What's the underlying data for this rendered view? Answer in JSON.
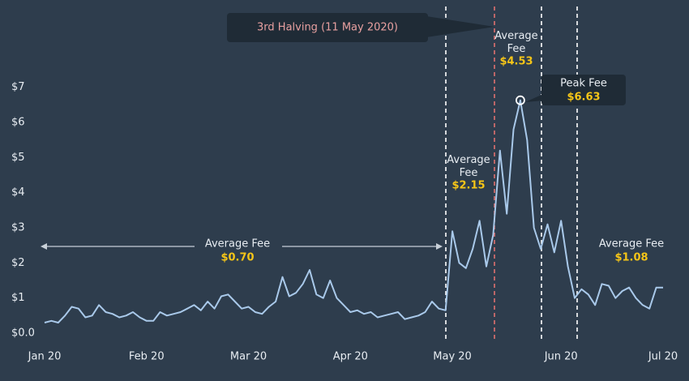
{
  "chart_data": {
    "type": "line",
    "categories": [
      "Jan 20",
      null,
      null,
      null,
      null,
      null,
      null,
      null,
      null,
      null,
      null,
      null,
      null,
      null,
      null,
      "Feb 20",
      null,
      null,
      null,
      null,
      null,
      null,
      null,
      null,
      null,
      null,
      null,
      null,
      null,
      null,
      "Mar 20",
      null,
      null,
      null,
      null,
      null,
      null,
      null,
      null,
      null,
      null,
      null,
      null,
      null,
      null,
      "Apr 20",
      null,
      null,
      null,
      null,
      null,
      null,
      null,
      null,
      null,
      null,
      null,
      null,
      null,
      null,
      "May 20",
      null,
      null,
      null,
      null,
      null,
      null,
      null,
      null,
      null,
      null,
      null,
      null,
      null,
      null,
      null,
      "Jun 20",
      null,
      null,
      null,
      null,
      null,
      null,
      null,
      null,
      null,
      null,
      null,
      null,
      null,
      null,
      "Jul 20"
    ],
    "values": [
      0.3,
      0.35,
      0.3,
      0.5,
      0.75,
      0.7,
      0.45,
      0.5,
      0.8,
      0.6,
      0.55,
      0.45,
      0.5,
      0.6,
      0.45,
      0.35,
      0.35,
      0.6,
      0.5,
      0.55,
      0.6,
      0.7,
      0.8,
      0.65,
      0.9,
      0.7,
      1.05,
      1.1,
      0.9,
      0.7,
      0.75,
      0.6,
      0.55,
      0.75,
      0.9,
      1.6,
      1.05,
      1.15,
      1.4,
      1.8,
      1.1,
      1.0,
      1.5,
      1.0,
      0.8,
      0.6,
      0.65,
      0.55,
      0.6,
      0.45,
      0.5,
      0.55,
      0.6,
      0.4,
      0.45,
      0.5,
      0.6,
      0.9,
      0.7,
      0.65,
      2.9,
      2.0,
      1.85,
      2.4,
      3.2,
      1.9,
      2.8,
      5.2,
      3.4,
      5.8,
      6.63,
      5.5,
      3.0,
      2.4,
      3.1,
      2.3,
      3.2,
      1.9,
      1.0,
      1.25,
      1.1,
      0.8,
      1.4,
      1.35,
      1.0,
      1.2,
      1.3,
      1.0,
      0.8,
      0.7,
      1.3,
      1.3
    ],
    "color": "#a9c9ea",
    "ylim": [
      -0.3,
      7.8
    ],
    "yticks": [
      {
        "value": 0,
        "label": "$0.0"
      },
      {
        "value": 1,
        "label": "$1"
      },
      {
        "value": 2,
        "label": "$2"
      },
      {
        "value": 3,
        "label": "$3"
      },
      {
        "value": 4,
        "label": "$4"
      },
      {
        "value": 5,
        "label": "$5"
      },
      {
        "value": 6,
        "label": "$6"
      },
      {
        "value": 7,
        "label": "$7"
      }
    ],
    "annotations": [
      {
        "text": "3rd Halving (11 May 2020)"
      },
      {
        "text": "Average Fee",
        "amount": "$0.70"
      },
      {
        "text": "Average Fee",
        "amount": "$2.15"
      },
      {
        "text": "Average Fee",
        "amount": "$4.53"
      },
      {
        "text": "Peak Fee",
        "amount": "$6.63"
      },
      {
        "text": "Average Fee",
        "amount": "$1.08"
      }
    ]
  }
}
